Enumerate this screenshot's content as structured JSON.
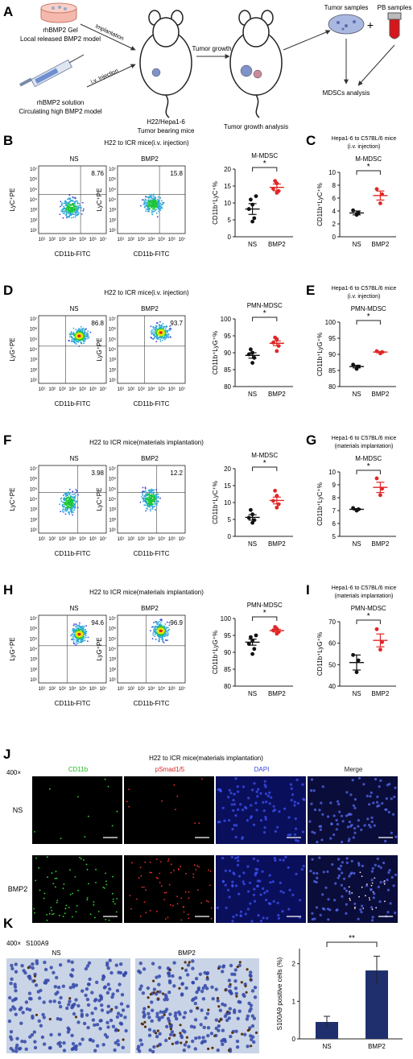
{
  "panelA": {
    "label": "A",
    "gel_text1": "rhBMP2 Gel",
    "gel_text2": "Local released BMP2 model",
    "sol_text1": "rhBMP2 solution",
    "sol_text2": "Circulating high BMP2 model",
    "arrow_implant": "Implantation",
    "arrow_iv": "i.v. Injection",
    "mouse_text1": "H22/Hepa1-6",
    "mouse_text2": "Tumor bearing mice",
    "arrow_growth": "Tumor growth",
    "mouse2_text": "Tumor growth analysis",
    "tumor_samples": "Tumor samples",
    "plus": "+",
    "pb_samples": "PB samples",
    "mdsc_analysis": "MDSCs analysis"
  },
  "flow_axis": {
    "ylabel_mono": "LyC⁺PE",
    "ylabel_gran": "LyG⁺PE",
    "xlabel": "CD11b-FITC",
    "ticks": [
      "10¹",
      "10²",
      "10³",
      "10⁴",
      "10⁵",
      "10⁶",
      "10⁷"
    ]
  },
  "rows": [
    {
      "label": "B",
      "title": "H22 to ICR mice(i.v. injection)",
      "ns_label": "NS",
      "bmp_label": "BMP2",
      "ns_pct": "8.76",
      "bmp_pct": "15.8",
      "subset": "M-MDSC",
      "ylabel": "CD11b⁺LyC⁺%",
      "sig": "*",
      "right_label": "C",
      "right_title1": "Hepa1-6 to C57BL/6 mice",
      "right_title2": "(i.v. injection)",
      "right_subset": "M-MDSC",
      "right_ylabel": "CD11b⁺LyC⁺%",
      "right_sig": "*"
    },
    {
      "label": "D",
      "title": "H22 to ICR mice(i.v. injection)",
      "ns_label": "NS",
      "bmp_label": "BMP2",
      "ns_pct": "86.8",
      "bmp_pct": "93.7",
      "subset": "PMN-MDSC",
      "ylabel": "CD11b⁺LyG⁺%",
      "sig": "*",
      "right_label": "E",
      "right_title1": "Hepa1-6 to C57BL/6 mice",
      "right_title2": "(i.v. injection)",
      "right_subset": "PMN-MDSC",
      "right_ylabel": "CD11b⁺LyG⁺%",
      "right_sig": "*"
    },
    {
      "label": "F",
      "title": "H22 to ICR mice(materials implantation)",
      "ns_label": "NS",
      "bmp_label": "BMP2",
      "ns_pct": "3.98",
      "bmp_pct": "12.2",
      "subset": "M-MDSC",
      "ylabel": "CD11b⁺LyC⁺%",
      "sig": "*",
      "right_label": "G",
      "right_title1": "Hepa1-6 to C57BL/6 mice",
      "right_title2": "(materials implantation)",
      "right_subset": "M-MDSC",
      "right_ylabel": "CD11b⁺LyC⁺%",
      "right_sig": "*"
    },
    {
      "label": "H",
      "title": "H22 to ICR mice(materials implantation)",
      "ns_label": "NS",
      "bmp_label": "BMP2",
      "ns_pct": "94.6",
      "bmp_pct": "96.9",
      "subset": "PMN-MDSC",
      "ylabel": "CD11b⁺LyG⁺%",
      "sig": "*",
      "right_label": "I",
      "right_title1": "Hepa1-6 to C57BL/6 mice",
      "right_title2": "(materials implantation)",
      "right_subset": "PMN-MDSC",
      "right_ylabel": "CD11b⁺LyG⁺%",
      "right_sig": "*"
    }
  ],
  "panelJ": {
    "label": "J",
    "title": "H22 to ICR mice(materials implantation)",
    "magnification": "400×",
    "channels": [
      "CD11b",
      "pSmad1/5",
      "DAPI",
      "Merge"
    ],
    "channel_colors": [
      "#22bb22",
      "#dd2222",
      "#3344dd",
      "#222222"
    ],
    "rows": [
      "NS",
      "BMP2"
    ]
  },
  "panelK": {
    "label": "K",
    "magnification": "400×",
    "stain": "S100A9",
    "ns_label": "NS",
    "bmp_label": "BMP2",
    "sig": "**",
    "ylabel": "S100A9 positive cells (%)"
  },
  "chart_data": [
    {
      "id": "B",
      "type": "scatter",
      "title": "M-MDSC",
      "ylabel": "CD11b⁺LyC⁺%",
      "categories": [
        "NS",
        "BMP2"
      ],
      "ylim": [
        0,
        20
      ],
      "yticks": [
        0,
        5,
        10,
        15,
        20
      ],
      "series": [
        {
          "values": [
            [
              4.5,
              5.5,
              8.2,
              9.5,
              11.0,
              12.0
            ],
            [
              13.0,
              13.5,
              14.2,
              15.8,
              16.5
            ]
          ]
        }
      ],
      "means": [
        8.2,
        14.6
      ],
      "sem": [
        1.6,
        1.0
      ],
      "significance": "*"
    },
    {
      "id": "C",
      "type": "scatter",
      "title": "M-MDSC",
      "ylabel": "CD11b⁺LyC⁺%",
      "categories": [
        "NS",
        "BMP2"
      ],
      "ylim": [
        0,
        10
      ],
      "yticks": [
        0,
        2,
        4,
        6,
        8,
        10
      ],
      "series": [
        {
          "values": [
            [
              3.4,
              3.7,
              4.1
            ],
            [
              5.2,
              6.6,
              7.4
            ]
          ]
        }
      ],
      "means": [
        3.7,
        6.4
      ],
      "sem": [
        0.3,
        0.7
      ],
      "significance": "*"
    },
    {
      "id": "D",
      "type": "scatter",
      "title": "PMN-MDSC",
      "ylabel": "CD11b⁺LyG⁺%",
      "categories": [
        "NS",
        "BMP2"
      ],
      "ylim": [
        80,
        100
      ],
      "yticks": [
        80,
        85,
        90,
        95,
        100
      ],
      "series": [
        {
          "values": [
            [
              87.0,
              88.5,
              89.5,
              90.0,
              91.0
            ],
            [
              90.5,
              92.0,
              93.0,
              94.0,
              94.5
            ]
          ]
        }
      ],
      "means": [
        89.2,
        92.8
      ],
      "sem": [
        0.8,
        0.7
      ],
      "significance": "*"
    },
    {
      "id": "E",
      "type": "scatter",
      "title": "PMN-MDSC",
      "ylabel": "CD11b⁺LyG⁺%",
      "categories": [
        "NS",
        "BMP2"
      ],
      "ylim": [
        80,
        100
      ],
      "yticks": [
        80,
        85,
        90,
        95,
        100
      ],
      "series": [
        {
          "values": [
            [
              85.5,
              86.2,
              86.8
            ],
            [
              90.3,
              90.7,
              91.0
            ]
          ]
        }
      ],
      "means": [
        86.2,
        90.7
      ],
      "sem": [
        0.4,
        0.2
      ],
      "significance": "*"
    },
    {
      "id": "F",
      "type": "scatter",
      "title": "M-MDSC",
      "ylabel": "CD11b⁺LyC⁺%",
      "categories": [
        "NS",
        "BMP2"
      ],
      "ylim": [
        0,
        20
      ],
      "yticks": [
        0,
        5,
        10,
        15,
        20
      ],
      "series": [
        {
          "values": [
            [
              4.0,
              4.8,
              5.5,
              6.5,
              7.8
            ],
            [
              8.5,
              9.5,
              10.5,
              12.0,
              13.5
            ]
          ]
        }
      ],
      "means": [
        5.6,
        10.6
      ],
      "sem": [
        0.8,
        1.0
      ],
      "significance": "*"
    },
    {
      "id": "G",
      "type": "scatter",
      "title": "M-MDSC",
      "ylabel": "CD11b⁺LyC⁺%",
      "categories": [
        "NS",
        "BMP2"
      ],
      "ylim": [
        5,
        10
      ],
      "yticks": [
        5,
        6,
        7,
        8,
        9,
        10
      ],
      "series": [
        {
          "values": [
            [
              7.0,
              7.1,
              7.2
            ],
            [
              8.2,
              8.7,
              9.5
            ]
          ]
        }
      ],
      "means": [
        7.1,
        8.8
      ],
      "sem": [
        0.05,
        0.4
      ],
      "significance": "*"
    },
    {
      "id": "H",
      "type": "scatter",
      "title": "PMN-MDSC",
      "ylabel": "CD11b⁺LyG⁺%",
      "categories": [
        "NS",
        "BMP2"
      ],
      "ylim": [
        80,
        100
      ],
      "yticks": [
        80,
        85,
        90,
        95,
        100
      ],
      "series": [
        {
          "values": [
            [
              89.5,
              91.0,
              92.5,
              93.5,
              94.5,
              95.0
            ],
            [
              95.5,
              96.0,
              96.5,
              97.0,
              97.5
            ]
          ]
        }
      ],
      "means": [
        93.0,
        96.4
      ],
      "sem": [
        0.9,
        0.4
      ],
      "significance": "*"
    },
    {
      "id": "I",
      "type": "scatter",
      "title": "PMN-MDSC",
      "ylabel": "CD11b⁺LyG⁺%",
      "categories": [
        "NS",
        "BMP2"
      ],
      "ylim": [
        40,
        70
      ],
      "yticks": [
        40,
        50,
        60,
        70
      ],
      "series": [
        {
          "values": [
            [
              46.5,
              52.0,
              54.5
            ],
            [
              57.0,
              60.5,
              66.5
            ]
          ]
        }
      ],
      "means": [
        51.0,
        61.3
      ],
      "sem": [
        3.5,
        3.0
      ],
      "significance": "*"
    },
    {
      "id": "K",
      "type": "bar",
      "title": "",
      "ylabel": "S100A9 positive cells (%)",
      "categories": [
        "NS",
        "BMP2"
      ],
      "ylim": [
        0,
        2.4
      ],
      "yticks": [
        0,
        1,
        2
      ],
      "values": [
        0.45,
        1.82
      ],
      "errors": [
        0.15,
        0.38
      ],
      "significance": "**"
    }
  ]
}
